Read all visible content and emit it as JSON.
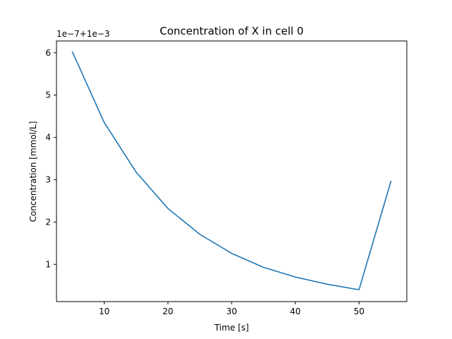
{
  "chart_data": {
    "type": "line",
    "title": "Concentration of X in cell 0",
    "xlabel": "Time [s]",
    "ylabel": "Concentration [mmol/L]",
    "y_offset_label": "1e−7+1e−3",
    "y_offset_value": 0.001,
    "y_scale_factor": 1e-07,
    "xlim": [
      2.5,
      57.5
    ],
    "ylim": [
      0.12,
      6.28
    ],
    "xticks": [
      10,
      20,
      30,
      40,
      50
    ],
    "xtick_labels": [
      "10",
      "20",
      "30",
      "40",
      "50"
    ],
    "yticks": [
      1,
      2,
      3,
      4,
      5,
      6
    ],
    "ytick_labels": [
      "1",
      "2",
      "3",
      "4",
      "5",
      "6"
    ],
    "grid": false,
    "legend": false,
    "series": [
      {
        "color": "#1f77b4",
        "x": [
          5,
          10,
          15,
          20,
          25,
          30,
          35,
          40,
          45,
          50,
          55
        ],
        "y": [
          6.02,
          4.35,
          3.18,
          2.32,
          1.71,
          1.26,
          0.93,
          0.7,
          0.53,
          0.4,
          2.96
        ]
      }
    ]
  }
}
